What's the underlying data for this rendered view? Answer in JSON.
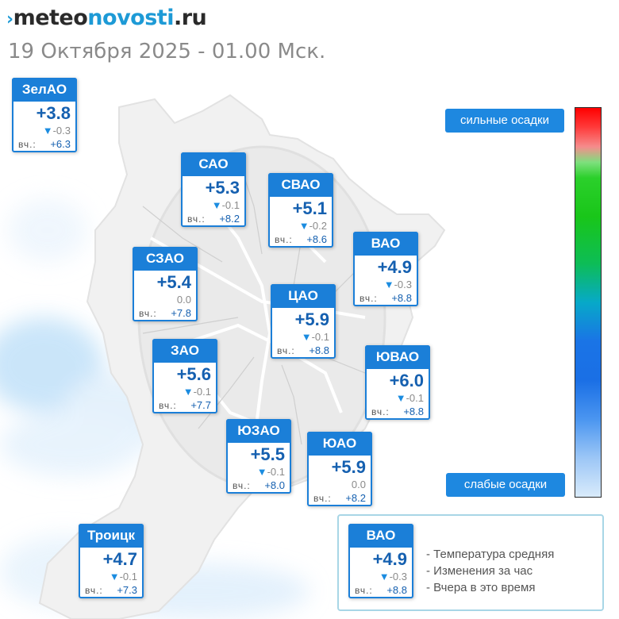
{
  "header": {
    "logo": {
      "mark": "›",
      "part1": "meteo",
      "part2": "novosti",
      "part3": ".ru"
    },
    "datetime": "19 Октября 2025 - 01.00 Мск."
  },
  "districts": [
    {
      "name": "ЗелАО",
      "temp": "+3.8",
      "change": "-0.3",
      "yesterday_label": "вч.:",
      "yesterday": "+6.3"
    },
    {
      "name": "САО",
      "temp": "+5.3",
      "change": "-0.1",
      "yesterday_label": "вч.:",
      "yesterday": "+8.2"
    },
    {
      "name": "СВАО",
      "temp": "+5.1",
      "change": "-0.2",
      "yesterday_label": "вч.:",
      "yesterday": "+8.6"
    },
    {
      "name": "ВАО",
      "temp": "+4.9",
      "change": "-0.3",
      "yesterday_label": "вч.:",
      "yesterday": "+8.8"
    },
    {
      "name": "СЗАО",
      "temp": "+5.4",
      "change": "0.0",
      "yesterday_label": "вч.:",
      "yesterday": "+7.8"
    },
    {
      "name": "ЦАО",
      "temp": "+5.9",
      "change": "-0.1",
      "yesterday_label": "вч.:",
      "yesterday": "+8.8"
    },
    {
      "name": "ЗАО",
      "temp": "+5.6",
      "change": "-0.1",
      "yesterday_label": "вч.:",
      "yesterday": "+7.7"
    },
    {
      "name": "ЮВАО",
      "temp": "+6.0",
      "change": "-0.1",
      "yesterday_label": "вч.:",
      "yesterday": "+8.8"
    },
    {
      "name": "ЮЗАО",
      "temp": "+5.5",
      "change": "-0.1",
      "yesterday_label": "вч.:",
      "yesterday": "+8.0"
    },
    {
      "name": "ЮАО",
      "temp": "+5.9",
      "change": "0.0",
      "yesterday_label": "вч.:",
      "yesterday": "+8.2"
    },
    {
      "name": "Троицк",
      "temp": "+4.7",
      "change": "-0.1",
      "yesterday_label": "вч.:",
      "yesterday": "+7.3"
    }
  ],
  "precip_scale": {
    "strong_label": "сильные осадки",
    "weak_label": "слабые осадки",
    "colors": {
      "top": "#ff0000",
      "middle_green": "#19c619",
      "blue": "#1a74e6",
      "bottom": "#d9ebfb"
    }
  },
  "legend": {
    "sample": {
      "name": "ВАО",
      "temp": "+4.9",
      "change": "-0.3",
      "yesterday_label": "вч.:",
      "yesterday": "+8.8"
    },
    "items": [
      "- Температура средняя",
      "- Изменения за час",
      "- Вчера в это время"
    ]
  },
  "colors": {
    "accent": "#1b7fd8",
    "temp_text": "#1560b0",
    "change_down": "#1b8ce0",
    "muted": "#8a8a8a"
  }
}
